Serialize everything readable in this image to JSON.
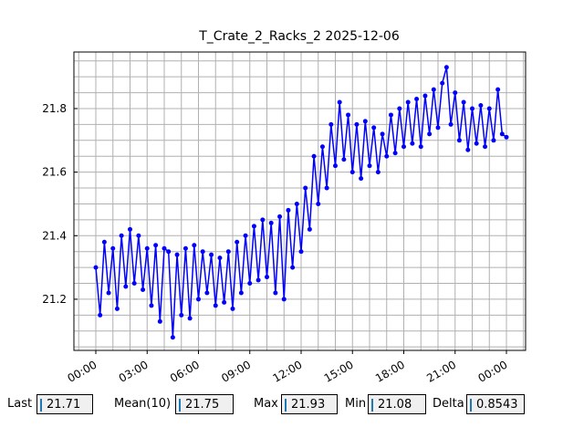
{
  "chart_data": {
    "type": "line",
    "title": "T_Crate_2_Racks_2 2025-12-06",
    "x": [
      0,
      0.25,
      0.5,
      0.75,
      1,
      1.25,
      1.5,
      1.75,
      2,
      2.25,
      2.5,
      2.75,
      3,
      3.25,
      3.5,
      3.75,
      4,
      4.25,
      4.5,
      4.75,
      5,
      5.25,
      5.5,
      5.75,
      6,
      6.25,
      6.5,
      6.75,
      7,
      7.25,
      7.5,
      7.75,
      8,
      8.25,
      8.5,
      8.75,
      9,
      9.25,
      9.5,
      9.75,
      10,
      10.25,
      10.5,
      10.75,
      11,
      11.25,
      11.5,
      11.75,
      12,
      12.25,
      12.5,
      12.75,
      13,
      13.25,
      13.5,
      13.75,
      14,
      14.25,
      14.5,
      14.75,
      15,
      15.25,
      15.5,
      15.75,
      16,
      16.25,
      16.5,
      16.75,
      17,
      17.25,
      17.5,
      17.75,
      18,
      18.25,
      18.5,
      18.75,
      19,
      19.25,
      19.5,
      19.75,
      20,
      20.25,
      20.5,
      20.75,
      21,
      21.25,
      21.5,
      21.75,
      22,
      22.25,
      22.5,
      22.75,
      23,
      23.25,
      23.5,
      23.75,
      24
    ],
    "series": [
      {
        "color": "#0000ff",
        "values": [
          21.3,
          21.15,
          21.38,
          21.22,
          21.36,
          21.17,
          21.4,
          21.24,
          21.42,
          21.25,
          21.4,
          21.23,
          21.36,
          21.18,
          21.37,
          21.13,
          21.36,
          21.35,
          21.08,
          21.34,
          21.15,
          21.36,
          21.14,
          21.37,
          21.2,
          21.35,
          21.22,
          21.34,
          21.18,
          21.33,
          21.19,
          21.35,
          21.17,
          21.38,
          21.22,
          21.4,
          21.25,
          21.43,
          21.26,
          21.45,
          21.27,
          21.44,
          21.22,
          21.46,
          21.2,
          21.48,
          21.3,
          21.5,
          21.35,
          21.55,
          21.42,
          21.65,
          21.5,
          21.68,
          21.55,
          21.75,
          21.62,
          21.82,
          21.64,
          21.78,
          21.6,
          21.75,
          21.58,
          21.76,
          21.62,
          21.74,
          21.6,
          21.72,
          21.65,
          21.78,
          21.66,
          21.8,
          21.68,
          21.82,
          21.69,
          21.83,
          21.68,
          21.84,
          21.72,
          21.86,
          21.74,
          21.88,
          21.93,
          21.75,
          21.85,
          21.7,
          21.82,
          21.67,
          21.8,
          21.69,
          21.81,
          21.68,
          21.8,
          21.7,
          21.86,
          21.72,
          21.71
        ]
      }
    ],
    "xlim": [
      -1.28,
      25.12
    ],
    "ylim": [
      21.039,
      21.978
    ],
    "xticks": [
      {
        "value": 0,
        "label": "00:00"
      },
      {
        "value": 3,
        "label": "03:00"
      },
      {
        "value": 6,
        "label": "06:00"
      },
      {
        "value": 9,
        "label": "09:00"
      },
      {
        "value": 12,
        "label": "12:00"
      },
      {
        "value": 15,
        "label": "15:00"
      },
      {
        "value": 18,
        "label": "18:00"
      },
      {
        "value": 21,
        "label": "21:00"
      },
      {
        "value": 24,
        "label": "00:00"
      }
    ],
    "yticks": [
      21.2,
      21.4,
      21.6,
      21.8
    ],
    "xminorticks": [
      -1,
      1,
      2,
      4,
      5,
      7,
      8,
      10,
      11,
      13,
      14,
      16,
      17,
      19,
      20,
      22,
      23,
      25
    ],
    "yminorticks": [
      21.05,
      21.1,
      21.15,
      21.25,
      21.3,
      21.35,
      21.45,
      21.5,
      21.55,
      21.65,
      21.7,
      21.75,
      21.85,
      21.9,
      21.95
    ],
    "grid": true
  },
  "stats": [
    {
      "label": "Last",
      "value": "21.71"
    },
    {
      "label": "Mean(10)",
      "value": "21.75"
    },
    {
      "label": "Max",
      "value": "21.93"
    },
    {
      "label": "Min",
      "value": "21.08"
    },
    {
      "label": "Delta",
      "value": "0.8543"
    }
  ]
}
